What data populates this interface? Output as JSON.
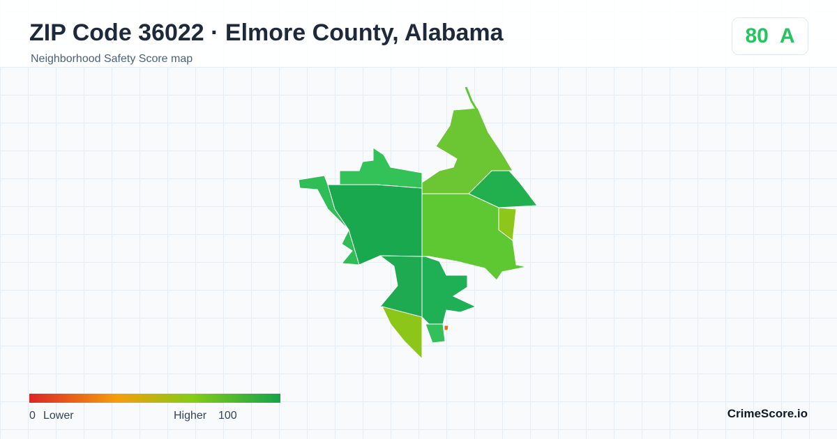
{
  "header": {
    "title": "ZIP Code 36022 · Elmore County, Alabama",
    "subtitle": "Neighborhood Safety Score map"
  },
  "score": {
    "value": 80,
    "grade": "A"
  },
  "legend": {
    "min": 0,
    "min_label": "Lower",
    "max_label": "Higher",
    "max": 100
  },
  "brand": "CrimeScore.io"
}
